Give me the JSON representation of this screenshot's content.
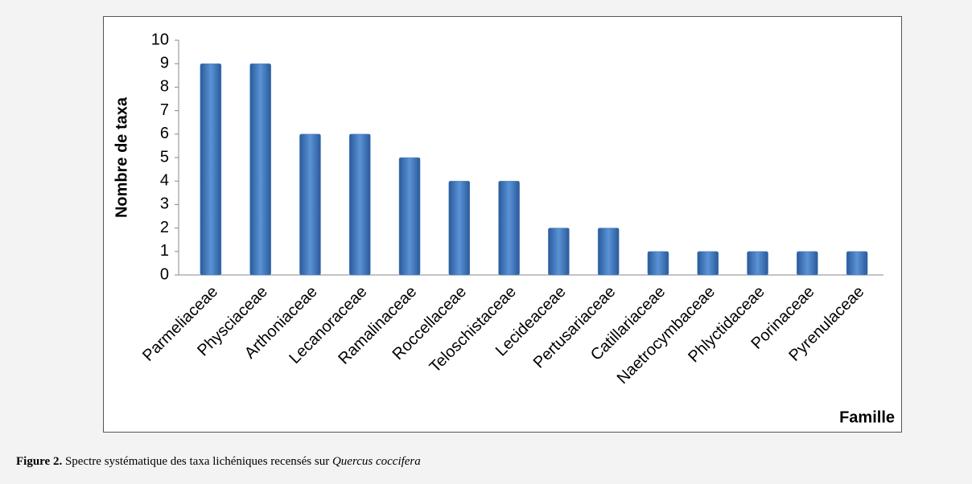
{
  "chart_data": {
    "type": "bar",
    "y_axis_label": "Nombre de taxa",
    "x_axis_label": "Famille",
    "categories": [
      "Parmeliaceae",
      "Physciaceae",
      "Arthoniaceae",
      "Lecanoraceae",
      "Ramalinaceae",
      "Roccellaceae",
      "Teloschistaceae",
      "Lecideaceae",
      "Pertusariaceae",
      "Catillariaceae",
      "Naetrocymbaceae",
      "Phlyctidaceae",
      "Porinaceae",
      "Pyrenulaceae"
    ],
    "values": [
      9,
      9,
      6,
      6,
      5,
      4,
      4,
      2,
      2,
      1,
      1,
      1,
      1,
      1
    ],
    "color": "#4f81bd",
    "ylim": [
      0,
      10
    ],
    "yticks": [
      0,
      1,
      2,
      3,
      4,
      5,
      6,
      7,
      8,
      9,
      10
    ],
    "grid": false
  },
  "caption": {
    "label": "Figure 2.",
    "text": "Spectre systématique des taxa lichéniques recensés sur",
    "species": "Quercus coccifera"
  }
}
